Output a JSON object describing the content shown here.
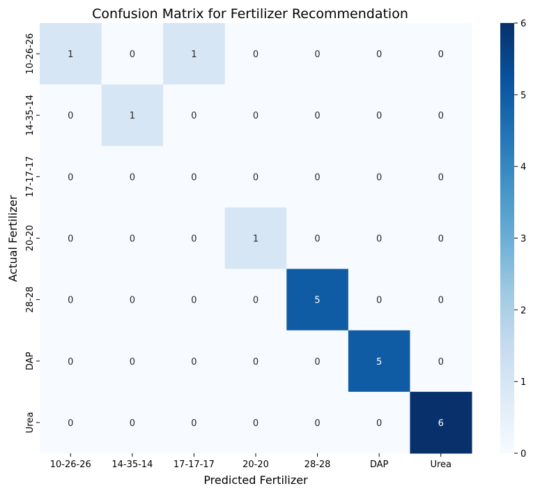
{
  "chart_data": {
    "type": "heatmap",
    "title": "Confusion Matrix for Fertilizer Recommendation",
    "xlabel": "Predicted Fertilizer",
    "ylabel": "Actual Fertilizer",
    "x_categories": [
      "10-26-26",
      "14-35-14",
      "17-17-17",
      "20-20",
      "28-28",
      "DAP",
      "Urea"
    ],
    "y_categories": [
      "10-26-26",
      "14-35-14",
      "17-17-17",
      "20-20",
      "28-28",
      "DAP",
      "Urea"
    ],
    "values": [
      [
        1,
        0,
        1,
        0,
        0,
        0,
        0
      ],
      [
        0,
        1,
        0,
        0,
        0,
        0,
        0
      ],
      [
        0,
        0,
        0,
        0,
        0,
        0,
        0
      ],
      [
        0,
        0,
        0,
        1,
        0,
        0,
        0
      ],
      [
        0,
        0,
        0,
        0,
        5,
        0,
        0
      ],
      [
        0,
        0,
        0,
        0,
        0,
        5,
        0
      ],
      [
        0,
        0,
        0,
        0,
        0,
        0,
        6
      ]
    ],
    "colorbar": {
      "min": 0,
      "max": 6,
      "ticks": [
        "0",
        "1",
        "2",
        "3",
        "4",
        "5",
        "6"
      ],
      "colormap": "Blues"
    },
    "annotate": true
  },
  "colors": {
    "low": "#f7fbff",
    "high": "#08306b",
    "text_dark": "#262626",
    "text_light": "#ffffff"
  }
}
